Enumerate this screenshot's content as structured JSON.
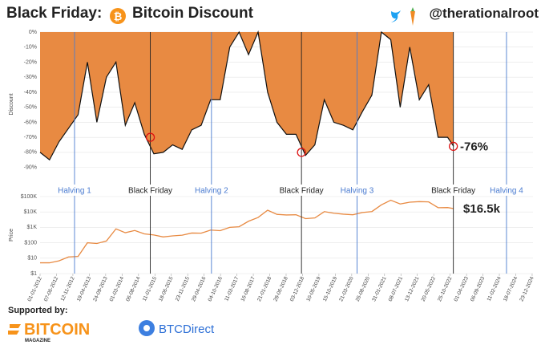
{
  "chart_data": {
    "type": "drawdown_price",
    "title": "Black Friday:",
    "title2": "Bitcoin Discount",
    "handle": "@therationalroot",
    "y_label": "Discount",
    "y2_label": "Price",
    "x": [
      "01-01-2012",
      "01-04-2012",
      "01-07-2012",
      "01-10-2012",
      "01-01-2013",
      "01-04-2013",
      "01-07-2013",
      "01-10-2013",
      "01-01-2014",
      "01-04-2014",
      "01-07-2014",
      "01-10-2014",
      "01-01-2015",
      "01-04-2015",
      "01-07-2015",
      "01-10-2015",
      "01-01-2016",
      "01-04-2016",
      "01-07-2016",
      "01-10-2016",
      "01-01-2017",
      "01-04-2017",
      "01-07-2017",
      "01-10-2017",
      "01-01-2018",
      "01-04-2018",
      "01-07-2018",
      "01-10-2018",
      "01-01-2019",
      "01-04-2019",
      "01-07-2019",
      "01-10-2019",
      "01-01-2020",
      "01-04-2020",
      "01-07-2020",
      "01-10-2020",
      "01-01-2021",
      "01-04-2021",
      "01-07-2021",
      "01-10-2021",
      "01-01-2022",
      "01-04-2022",
      "01-07-2022",
      "01-10-2022",
      "28-11-2022"
    ],
    "series": [
      {
        "name": "Discount",
        "color": "#e88a42",
        "values": [
          -80,
          -85,
          -73,
          -64,
          -55,
          -20,
          -60,
          -30,
          -20,
          -62,
          -47,
          -68,
          -81,
          -80,
          -75,
          -78,
          -65,
          -62,
          -45,
          -45,
          -10,
          0,
          -15,
          0,
          -40,
          -60,
          -68,
          -68,
          -82,
          -75,
          -45,
          -60,
          -62,
          -65,
          -53,
          -42,
          0,
          -5,
          -50,
          -10,
          -45,
          -35,
          -70,
          -70,
          -76
        ]
      },
      {
        "name": "Price",
        "color": "#e88a42",
        "axis": "y2",
        "values": [
          5,
          5,
          6.7,
          12,
          13,
          100,
          90,
          130,
          800,
          450,
          630,
          380,
          320,
          240,
          280,
          310,
          430,
          420,
          670,
          610,
          1000,
          1100,
          2500,
          4400,
          13000,
          7000,
          6400,
          6600,
          3700,
          4100,
          10500,
          8300,
          7200,
          6600,
          9200,
          10600,
          29000,
          58000,
          33000,
          43000,
          47000,
          45000,
          19000,
          19400,
          16500
        ]
      }
    ],
    "xlim": [
      "01-01-2012",
      "31-12-2024"
    ],
    "xticks": [
      "01-01-2012",
      "07-06-2012",
      "12-11-2012",
      "19-04-2013",
      "24-09-2013",
      "01-03-2014",
      "06-08-2014",
      "11-01-2015",
      "18-06-2015",
      "23-11-2015",
      "29-04-2016",
      "04-10-2016",
      "11-03-2017",
      "16-08-2017",
      "21-01-2018",
      "28-06-2018",
      "03-12-2018",
      "10-05-2019",
      "15-10-2019",
      "21-03-2020",
      "26-08-2020",
      "31-01-2021",
      "08-07-2021",
      "13-12-2021",
      "20-05-2022",
      "25-10-2022",
      "01-04-2023",
      "06-09-2023",
      "11-02-2024",
      "18-07-2024",
      "23-12-2024"
    ],
    "ylim": [
      -95,
      0
    ],
    "yticks": [
      {
        "value": 0,
        "label": "0%"
      },
      {
        "value": -10,
        "label": "-10%"
      },
      {
        "value": -20,
        "label": "-20%"
      },
      {
        "value": -30,
        "label": "-30%"
      },
      {
        "value": -40,
        "label": "-40%"
      },
      {
        "value": -50,
        "label": "-50%"
      },
      {
        "value": -60,
        "label": "-60%"
      },
      {
        "value": -70,
        "label": "-70%"
      },
      {
        "value": -80,
        "label": "-80%"
      },
      {
        "value": -90,
        "label": "-90%"
      }
    ],
    "y2lim": [
      1,
      100000
    ],
    "y2ticks": [
      {
        "value": 100000,
        "label": "$100K"
      },
      {
        "value": 10000,
        "label": "$10K"
      },
      {
        "value": 1000,
        "label": "$1K"
      },
      {
        "value": 100,
        "label": "$100"
      },
      {
        "value": 10,
        "label": "$10"
      },
      {
        "value": 1,
        "label": "$1"
      }
    ],
    "y2_log": true,
    "grid": true,
    "events": [
      {
        "label": "Halving 1",
        "date": "28-11-2012",
        "color": "#4a7bd0"
      },
      {
        "label": "Black Friday",
        "date": "28-11-2014",
        "color": "#222222",
        "discount": -70
      },
      {
        "label": "Halving 2",
        "date": "09-07-2016",
        "color": "#4a7bd0"
      },
      {
        "label": "Black Friday",
        "date": "23-11-2018",
        "color": "#222222",
        "discount": -80
      },
      {
        "label": "Halving 3",
        "date": "11-05-2020",
        "color": "#4a7bd0"
      },
      {
        "label": "Black Friday",
        "date": "25-11-2022",
        "color": "#222222",
        "discount": -76
      },
      {
        "label": "Halving 4",
        "date": "20-04-2024",
        "color": "#4a7bd0"
      }
    ],
    "annotations": [
      "-76%",
      "$16.5k"
    ],
    "footer": {
      "supported": "Supported by:",
      "sponsor1": "BITCOIN",
      "sponsor1_sub": "MAGAZINE",
      "sponsor2": "BTCDirect"
    }
  }
}
